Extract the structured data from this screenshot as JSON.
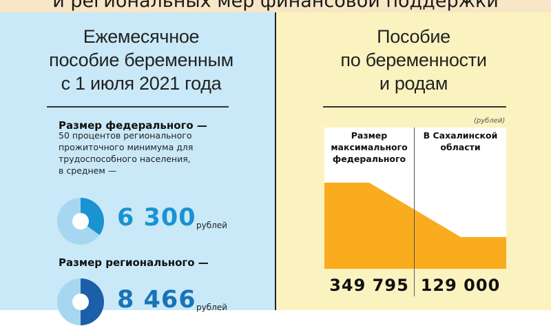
{
  "banner": {
    "text": "и региональных мер финансовой поддержки"
  },
  "left": {
    "title_lines": [
      "Ежемесячное",
      "пособие беременным",
      "с 1 июля 2021 года"
    ],
    "federal": {
      "label": "Размер федерального —",
      "description_lines": [
        "50 процентов регионального",
        "прожиточного минимума для",
        "трудоспособного населения,",
        "в среднем —"
      ],
      "value": "6 300",
      "unit": "рублей",
      "donut_fraction": 0.35
    },
    "regional": {
      "label": "Размер регионального —",
      "value": "8 466",
      "unit": "рублей",
      "donut_fraction": 0.5
    }
  },
  "right": {
    "title_lines": [
      "Пособие",
      "по беременности",
      "и родам"
    ],
    "units_note": "(рублей)",
    "columns": [
      {
        "header_lines": [
          "Размер",
          "максимального",
          "федерального"
        ],
        "value": "349 795",
        "amount": 349795
      },
      {
        "header_lines": [
          "В Сахалинской",
          "области"
        ],
        "value": "129 000",
        "amount": 129000
      }
    ]
  },
  "colors": {
    "left_bg": "#c9e9f8",
    "right_bg": "#fbf3bf",
    "accent_blue": "#1a93d1",
    "dark_blue": "#1a73b8",
    "light_blue": "#a7d7f0",
    "area_orange": "#f9ac1e"
  }
}
